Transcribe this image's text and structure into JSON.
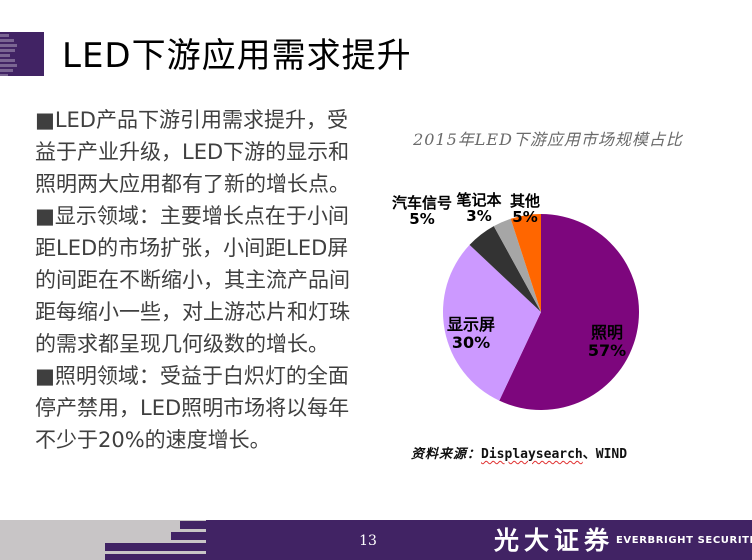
{
  "slide": {
    "title": "LED下游应用需求提升"
  },
  "body": {
    "paragraphs": [
      "■LED产品下游引用需求提升，受\n益于产业升级，LED下游的显示和\n照明两大应用都有了新的增长点。",
      "■显示领域：主要增长点在于小间\n距LED的市场扩张，小间距LED屏\n的间距在不断缩小，其主流产品间\n距每缩小一些，对上游芯片和灯珠\n的需求都呈现几何级数的增长。",
      "■照明领域：受益于白炽灯的全面\n停产禁用，LED照明市场将以每年\n不少于20%的速度增长。"
    ]
  },
  "chart_data": {
    "type": "pie",
    "title": "2015年LED下游应用市场规模占比",
    "start_angle_deg": 0,
    "direction": "clockwise",
    "slices": [
      {
        "name": "照明",
        "value": 57,
        "pct_label": "57%",
        "color": "#7D067D",
        "label_position": "inside"
      },
      {
        "name": "显示屏",
        "value": 30,
        "pct_label": "30%",
        "color": "#CC99FF",
        "label_position": "inside"
      },
      {
        "name": "汽车信号",
        "value": 5,
        "pct_label": "5%",
        "color": "#333333",
        "label_position": "outside-top"
      },
      {
        "name": "笔记本",
        "value": 3,
        "pct_label": "3%",
        "color": "#A6A6A6",
        "label_position": "outside-top"
      },
      {
        "name": "其他",
        "value": 5,
        "pct_label": "5%",
        "color": "#FF6600",
        "label_position": "outside-top"
      }
    ],
    "source": {
      "label": "资料来源：",
      "source_1": "Displaysearch",
      "source_rest": "、WIND"
    }
  },
  "footer": {
    "page_number": "13",
    "brand_cn": "光大证券",
    "brand_en": "EVERBRIGHT SECURITIES"
  },
  "colors": {
    "brand_purple": "#412364",
    "footer_gray": "#C8C5C6",
    "body_text": "#3F3F3F",
    "chart_title_gray": "#6A6A6A",
    "spellcheck_red": "#E03030"
  }
}
